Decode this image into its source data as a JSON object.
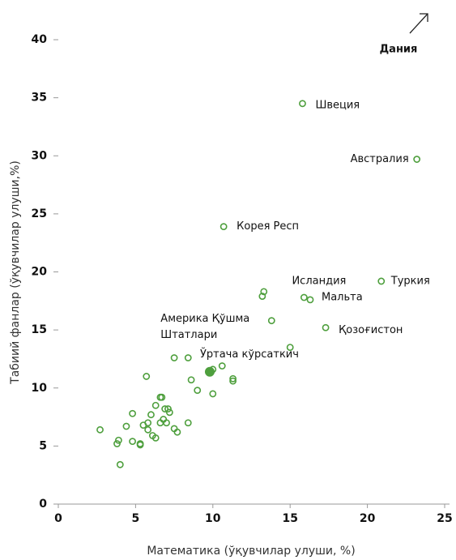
{
  "chart_data": {
    "type": "scatter",
    "x_label": "Математика (ўқувчилар улуши, %)",
    "y_label": "Табиий фанлар (ўқувчилар улуши,%)",
    "xlim": [
      0,
      25
    ],
    "xticks": [
      0,
      5,
      10,
      15,
      20,
      25
    ],
    "ylim": [
      0,
      40
    ],
    "yticks": [
      0,
      5,
      10,
      15,
      20,
      25,
      30,
      35,
      40
    ],
    "color": "#4e9f3d",
    "annotation": "Дания",
    "x": [
      2.7,
      3.8,
      3.9,
      4.0,
      4.4,
      4.8,
      4.8,
      5.3,
      5.3,
      5.5,
      5.7,
      5.8,
      5.8,
      6.0,
      6.1,
      6.3,
      6.3,
      6.6,
      6.7,
      6.6,
      6.9,
      6.8,
      7.1,
      7.0,
      7.2,
      7.5,
      7.5,
      7.7,
      8.4,
      8.4,
      8.6,
      9.0,
      10.0,
      10.0,
      10.6,
      11.3,
      11.3,
      13.2,
      13.3,
      15.0
    ],
    "y": [
      6.4,
      5.2,
      5.5,
      3.4,
      6.7,
      7.8,
      5.4,
      5.2,
      5.1,
      6.8,
      11.0,
      6.4,
      7.0,
      7.7,
      5.9,
      8.5,
      5.7,
      9.2,
      9.2,
      7.0,
      8.2,
      7.3,
      8.2,
      7.0,
      7.9,
      12.6,
      6.5,
      6.2,
      7.0,
      12.6,
      10.7,
      9.8,
      9.5,
      11.6,
      11.9,
      10.8,
      10.6,
      17.9,
      18.3,
      13.5
    ],
    "labeled": [
      {
        "label": "Швеция",
        "x": 15.8,
        "y": 34.5
      },
      {
        "label": "Австралия",
        "x": 23.2,
        "y": 29.7
      },
      {
        "label": "Корея Респ",
        "x": 10.7,
        "y": 23.9
      },
      {
        "label": "Туркия",
        "x": 20.9,
        "y": 19.2
      },
      {
        "label": "Исландия",
        "x": 15.9,
        "y": 17.8
      },
      {
        "label": "Мальта",
        "x": 16.3,
        "y": 17.6
      },
      {
        "label": "Қозоғистон",
        "x": 17.3,
        "y": 15.2
      },
      {
        "label": [
          "Америка Қўшма",
          "Штатлари"
        ],
        "x": 13.8,
        "y": 15.8
      }
    ],
    "average": {
      "label": "Ўртача кўрсаткич",
      "x": 9.8,
      "y": 11.4
    }
  }
}
